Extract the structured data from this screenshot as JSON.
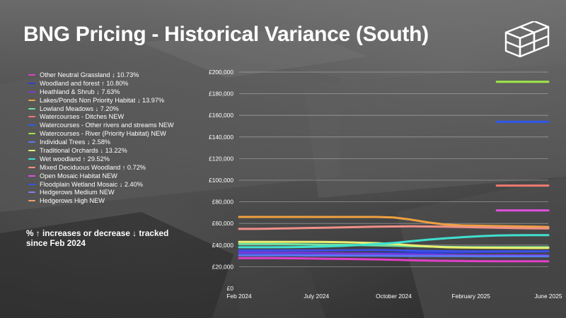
{
  "slide": {
    "title": "BNG Pricing - Historical Variance (South)",
    "note": "% ↑ increases or decrease ↓ tracked since Feb 2024"
  },
  "chart_data": {
    "type": "line",
    "title": "BNG Pricing - Historical Variance (South)",
    "xlabel": "",
    "ylabel": "",
    "x": [
      0,
      1,
      2,
      3,
      4,
      5,
      6,
      7,
      8,
      9,
      10,
      11,
      12,
      13,
      14,
      15,
      16,
      17,
      18
    ],
    "x_tick_values": [
      0,
      4.5,
      9,
      13.5,
      18
    ],
    "x_tick_labels": [
      "Feb 2024",
      "July 2024",
      "October 2024",
      "February 2025",
      "June 2025"
    ],
    "ylim": [
      0,
      200000
    ],
    "y_ticks": [
      0,
      20000,
      40000,
      60000,
      80000,
      100000,
      120000,
      140000,
      160000,
      180000,
      200000
    ],
    "y_tick_labels": [
      "£0",
      "£20,000",
      "£40,000",
      "£60,000",
      "£80,000",
      "£100,000",
      "£120,000",
      "£140,000",
      "£160,000",
      "£180,000",
      "£200,000"
    ],
    "grid": true,
    "legend_position": "left",
    "series": [
      {
        "name": "Other Neutral Grassland ↓ 10.73%",
        "color": "#e040c8",
        "values": [
          28000,
          28000,
          27900,
          27800,
          27600,
          27400,
          27200,
          27000,
          26700,
          26400,
          26000,
          25700,
          25400,
          25200,
          25100,
          25000,
          25000,
          25000,
          25000
        ]
      },
      {
        "name": "Woodland and forest ↑ 10.80%",
        "color": "#2a3fd8",
        "values": [
          31000,
          31000,
          31100,
          31200,
          31400,
          31600,
          31900,
          32200,
          32400,
          32500,
          32700,
          32900,
          33200,
          33400,
          33600,
          33800,
          34000,
          34200,
          34300
        ]
      },
      {
        "name": "Heathland & Shrub ↓ 7.63%",
        "color": "#7a3ad8",
        "values": [
          33000,
          33000,
          32900,
          32800,
          32700,
          32500,
          32300,
          32100,
          31900,
          31600,
          31300,
          31100,
          30900,
          30700,
          30600,
          30500,
          30500,
          30500,
          30500
        ]
      },
      {
        "name": "Lakes/Ponds Non Priority Habitat ↓ 13.97%",
        "color": "#f0a040",
        "values": [
          66000,
          66000,
          66000,
          66000,
          66000,
          66000,
          66000,
          66000,
          66000,
          65500,
          63500,
          61000,
          59000,
          58200,
          57900,
          57600,
          57400,
          57100,
          56800
        ]
      },
      {
        "name": "Lowland Meadows ↓ 7.20%",
        "color": "#6fe0a0",
        "values": [
          41000,
          41000,
          41000,
          40800,
          40600,
          40400,
          40200,
          40000,
          39700,
          39400,
          39000,
          38600,
          38300,
          38100,
          38000,
          38000,
          38000,
          38000,
          38000
        ]
      },
      {
        "name": "Watercourses - Ditches NEW",
        "color": "#f07a70",
        "values": [
          null,
          null,
          null,
          null,
          null,
          null,
          null,
          null,
          null,
          null,
          null,
          null,
          null,
          null,
          null,
          95000,
          95000,
          95000,
          95000
        ]
      },
      {
        "name": "Watercourses - Other rivers and streams NEW",
        "color": "#2f58f0",
        "values": [
          null,
          null,
          null,
          null,
          null,
          null,
          null,
          null,
          null,
          null,
          null,
          null,
          null,
          null,
          null,
          154000,
          154000,
          154000,
          154000
        ]
      },
      {
        "name": "Watercourses - River (Priority Habitat) NEW",
        "color": "#9ee848",
        "values": [
          null,
          null,
          null,
          null,
          null,
          null,
          null,
          null,
          null,
          null,
          null,
          null,
          null,
          null,
          null,
          191000,
          191000,
          191000,
          191000
        ]
      },
      {
        "name": "Individual Trees ↓ 2.58%",
        "color": "#5a78f0",
        "values": [
          30500,
          30500,
          30500,
          30500,
          30400,
          30400,
          30300,
          30200,
          30100,
          30000,
          29900,
          29900,
          29800,
          29800,
          29700,
          29700,
          29700,
          29700,
          29700
        ]
      },
      {
        "name": "Traditional Orchards ↓ 13.22%",
        "color": "#e8f070",
        "values": [
          43000,
          43000,
          43000,
          43000,
          43000,
          42900,
          42600,
          42200,
          41800,
          41000,
          39800,
          38800,
          38000,
          37700,
          37600,
          37500,
          37400,
          37300,
          37300
        ]
      },
      {
        "name": "Wet woodland ↑ 29.52%",
        "color": "#40e0d0",
        "values": [
          38000,
          38000,
          38000,
          38100,
          38300,
          38700,
          39200,
          40000,
          41000,
          42000,
          43500,
          45000,
          46300,
          47300,
          48200,
          48800,
          49100,
          49200,
          49200
        ]
      },
      {
        "name": "Mixed Deciduous Woodland ↑ 0.72%",
        "color": "#f09088",
        "values": [
          55000,
          55000,
          55200,
          55500,
          55800,
          56100,
          56400,
          56700,
          57000,
          57200,
          57300,
          57200,
          57000,
          56700,
          56400,
          56000,
          55700,
          55500,
          55400
        ]
      },
      {
        "name": "Open Mosaic Habitat NEW",
        "color": "#e050e0",
        "values": [
          null,
          null,
          null,
          null,
          null,
          null,
          null,
          null,
          null,
          null,
          null,
          null,
          null,
          null,
          null,
          72000,
          72000,
          72000,
          72000
        ]
      },
      {
        "name": "Floodplain Wetland Mosaic ↓ 2.40%",
        "color": "#3a50e8",
        "values": [
          35000,
          35000,
          35000,
          35000,
          35000,
          35100,
          35200,
          35300,
          35400,
          35200,
          34800,
          34500,
          34300,
          34200,
          34200,
          34200,
          34200,
          34200,
          34200
        ]
      },
      {
        "name": "Hedgerows Medium NEW",
        "color": "#8a7ae8",
        "values": [
          null,
          null,
          null,
          null,
          null,
          null,
          null,
          null,
          null,
          null,
          null,
          null,
          null,
          null,
          null,
          null,
          null,
          null,
          null
        ]
      },
      {
        "name": "Hedgerows High NEW",
        "color": "#f0a068",
        "values": [
          null,
          null,
          null,
          null,
          null,
          null,
          null,
          null,
          null,
          null,
          null,
          null,
          null,
          null,
          null,
          null,
          null,
          null,
          null
        ]
      }
    ]
  }
}
